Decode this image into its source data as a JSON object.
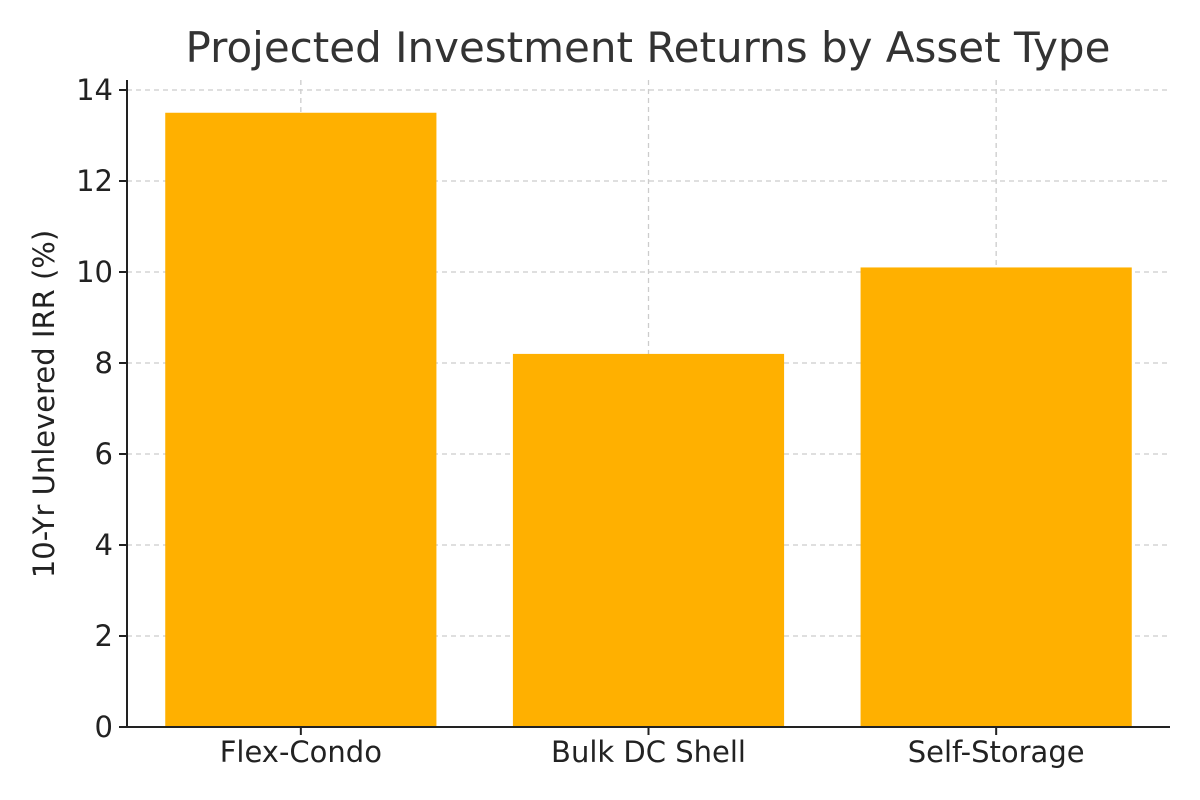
{
  "chart_data": {
    "type": "bar",
    "title": "Projected Investment Returns by Asset Type",
    "xlabel": "",
    "ylabel": "10-Yr Unlevered IRR (%)",
    "categories": [
      "Flex-Condo",
      "Bulk DC Shell",
      "Self-Storage"
    ],
    "values": [
      13.5,
      8.2,
      10.1
    ],
    "ylim": [
      0,
      14
    ],
    "yticks": [
      0,
      2,
      4,
      6,
      8,
      10,
      12,
      14
    ],
    "grid": true,
    "bar_color": "#FFB000",
    "legend": "none"
  }
}
